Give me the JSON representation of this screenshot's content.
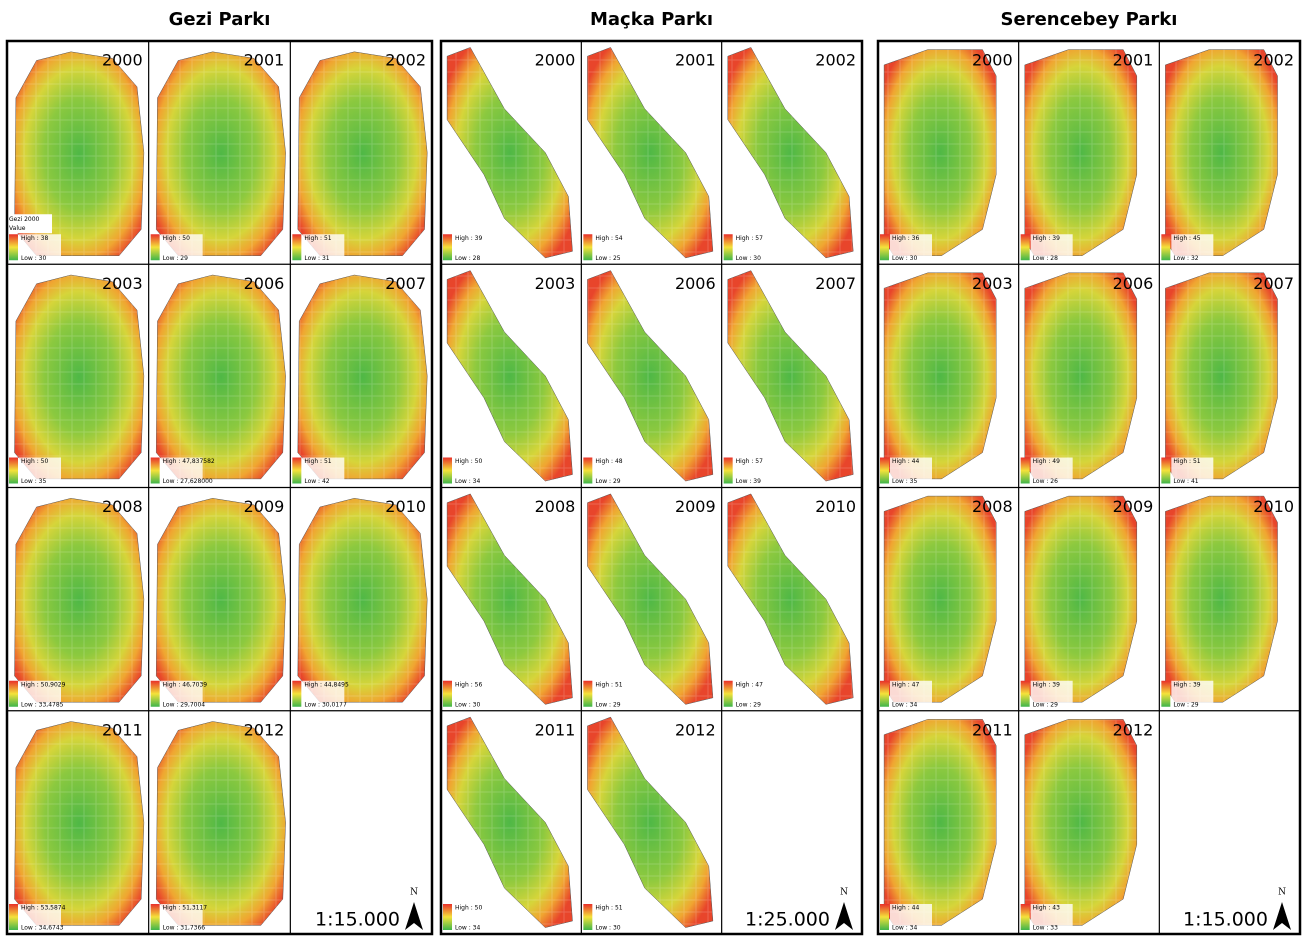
{
  "panels": [
    {
      "title": "Gezi Parkı",
      "legend_title": "Gezi 2000",
      "legend_subtitle": "Value",
      "scale": "1:15.000",
      "north": "N",
      "maps": [
        {
          "year": 2000,
          "high": "High : 38",
          "low": "Low : 30"
        },
        {
          "year": 2001,
          "high": "High : 50",
          "low": "Low : 29"
        },
        {
          "year": 2002,
          "high": "High : 51",
          "low": "Low : 31"
        },
        {
          "year": 2003,
          "high": "High : 50",
          "low": "Low : 35"
        },
        {
          "year": 2006,
          "high": "High : 47,837582",
          "low": "Low : 27,628000"
        },
        {
          "year": 2007,
          "high": "High : 51",
          "low": "Low : 42"
        },
        {
          "year": 2008,
          "high": "High : 50,9029",
          "low": "Low : 33,4785"
        },
        {
          "year": 2009,
          "high": "High : 46,7039",
          "low": "Low : 29,7004"
        },
        {
          "year": 2010,
          "high": "High : 44,8495",
          "low": "Low : 30,0177"
        },
        {
          "year": 2011,
          "high": "High : 53,5874",
          "low": "Low : 34,6743"
        },
        {
          "year": 2012,
          "high": "High : 51,3117",
          "low": "Low : 31,7366"
        }
      ]
    },
    {
      "title": "Maçka Parkı",
      "scale": "1:25.000",
      "north": "N",
      "maps": [
        {
          "year": 2000,
          "high": "High : 39",
          "low": "Low : 28"
        },
        {
          "year": 2001,
          "high": "High : 54",
          "low": "Low : 25"
        },
        {
          "year": 2002,
          "high": "High : 57",
          "low": "Low : 30"
        },
        {
          "year": 2003,
          "high": "High : 50",
          "low": "Low : 34"
        },
        {
          "year": 2006,
          "high": "High : 48",
          "low": "Low : 29"
        },
        {
          "year": 2007,
          "high": "High : 57",
          "low": "Low : 39"
        },
        {
          "year": 2008,
          "high": "High : 56",
          "low": "Low : 30"
        },
        {
          "year": 2009,
          "high": "High : 51",
          "low": "Low : 29"
        },
        {
          "year": 2010,
          "high": "High : 47",
          "low": "Low : 29"
        },
        {
          "year": 2011,
          "high": "High : 50",
          "low": "Low : 34"
        },
        {
          "year": 2012,
          "high": "High : 51",
          "low": "Low : 30"
        }
      ]
    },
    {
      "title": "Serencebey Parkı",
      "scale": "1:15.000",
      "north": "N",
      "maps": [
        {
          "year": 2000,
          "high": "High : 36",
          "low": "Low : 30"
        },
        {
          "year": 2001,
          "high": "High : 39",
          "low": "Low : 28"
        },
        {
          "year": 2002,
          "high": "High : 45",
          "low": "Low : 32"
        },
        {
          "year": 2003,
          "high": "High : 44",
          "low": "Low : 35"
        },
        {
          "year": 2006,
          "high": "High : 49",
          "low": "Low : 26"
        },
        {
          "year": 2007,
          "high": "High : 51",
          "low": "Low : 41"
        },
        {
          "year": 2008,
          "high": "High : 47",
          "low": "Low : 34"
        },
        {
          "year": 2009,
          "high": "High : 39",
          "low": "Low : 29"
        },
        {
          "year": 2010,
          "high": "High : 39",
          "low": "Low : 29"
        },
        {
          "year": 2011,
          "high": "High : 44",
          "low": "Low : 34"
        },
        {
          "year": 2012,
          "high": "High : 43",
          "low": "Low : 33"
        }
      ]
    }
  ]
}
